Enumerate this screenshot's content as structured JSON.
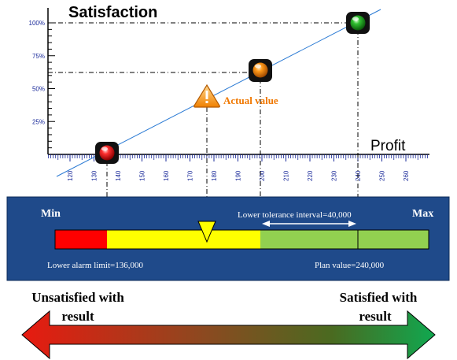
{
  "chart": {
    "title": "Satisfaction",
    "x_title": "Profit",
    "y_ticks": [
      "25%",
      "50%",
      "75%",
      "100%"
    ],
    "x_ticks": [
      "120",
      "130",
      "140",
      "150",
      "160",
      "170",
      "180",
      "190",
      "200",
      "210",
      "220",
      "230",
      "240",
      "250",
      "260"
    ],
    "actual_label": "Actual value",
    "markers": [
      {
        "name": "lower-alarm-marker",
        "color": "red"
      },
      {
        "name": "actual-value-marker",
        "color": "warning"
      },
      {
        "name": "lower-tolerance-marker",
        "color": "orange"
      },
      {
        "name": "plan-value-marker",
        "color": "green"
      }
    ]
  },
  "scale_panel": {
    "min_label": "Min",
    "max_label": "Max",
    "tolerance_label": "Lower tolerance interval=40,000",
    "alarm_label": "Lower alarm limit=136,000",
    "plan_label": "Plan value=240,000",
    "colors": {
      "panel": "#1f4a8a",
      "red": "#ff0000",
      "yellow": "#ffff00",
      "green": "#92d050"
    }
  },
  "arrow": {
    "left_label_1": "Unsatisfied with",
    "left_label_2": "result",
    "right_label_1": "Satisfied with",
    "right_label_2": "result",
    "colors": {
      "left": "#e82010",
      "right": "#10a040"
    }
  }
}
